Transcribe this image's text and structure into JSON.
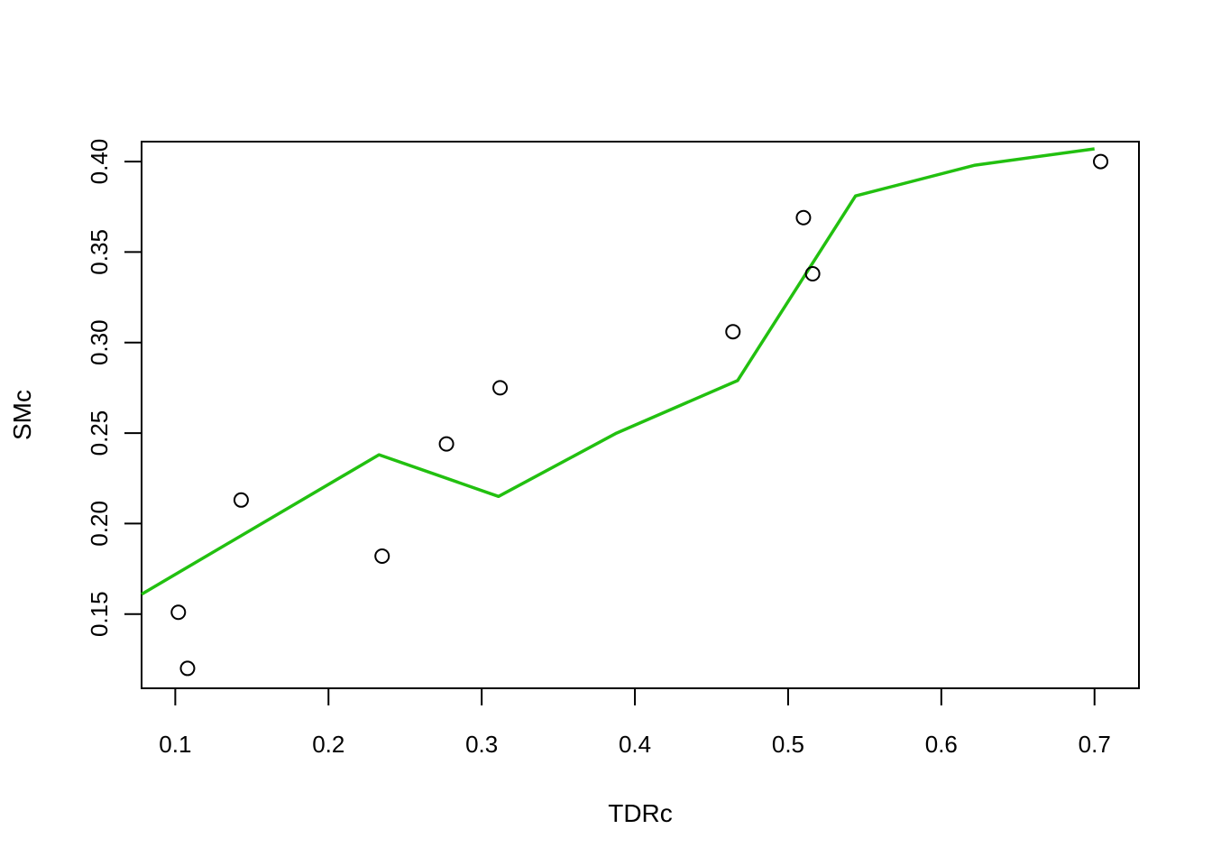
{
  "chart_data": {
    "type": "scatter",
    "xlabel": "TDRc",
    "ylabel": "SMc",
    "xlim": [
      0.078,
      0.729
    ],
    "ylim": [
      0.109,
      0.411
    ],
    "x_ticks": [
      0.1,
      0.2,
      0.3,
      0.4,
      0.5,
      0.6,
      0.7
    ],
    "x_tick_labels": [
      "0.1",
      "0.2",
      "0.3",
      "0.4",
      "0.5",
      "0.6",
      "0.7"
    ],
    "y_ticks": [
      0.15,
      0.2,
      0.25,
      0.3,
      0.35,
      0.4
    ],
    "y_tick_labels": [
      "0.15",
      "0.20",
      "0.25",
      "0.30",
      "0.35",
      "0.40"
    ],
    "grid": false,
    "points": {
      "x": [
        0.102,
        0.108,
        0.143,
        0.235,
        0.277,
        0.312,
        0.464,
        0.51,
        0.516,
        0.704
      ],
      "y": [
        0.151,
        0.12,
        0.213,
        0.182,
        0.244,
        0.275,
        0.306,
        0.369,
        0.338,
        0.4
      ],
      "marker": "open-circle",
      "color": "#000000"
    },
    "series": [
      {
        "type": "line",
        "color": "#22c010",
        "x": [
          0.078,
          0.233,
          0.311,
          0.388,
          0.467,
          0.544,
          0.622,
          0.7
        ],
        "y": [
          0.161,
          0.238,
          0.215,
          0.25,
          0.279,
          0.381,
          0.398,
          0.407
        ]
      }
    ]
  }
}
